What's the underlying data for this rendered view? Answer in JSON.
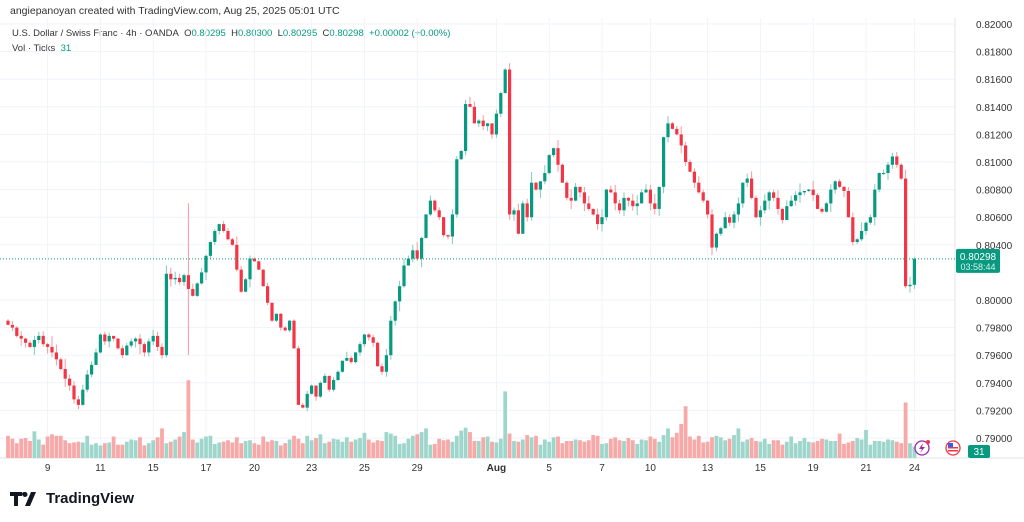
{
  "header": {
    "credit": "angiepanoyan created with TradingView.com, Aug 25, 2025 05:01 UTC",
    "symbol": "U.S. Dollar / Swiss Franc · 4h · OANDA",
    "o_label": "O",
    "o": "0.80295",
    "h_label": "H",
    "h": "0.80300",
    "l_label": "L",
    "l": "0.80295",
    "c_label": "C",
    "c": "0.80298",
    "change": "+0.00002 (+0.00%)",
    "vol_label": "Vol · Ticks",
    "vol_value": "31"
  },
  "logo": {
    "text": "TradingView"
  },
  "colors": {
    "up": "#089981",
    "down": "#f23645",
    "vol_up": "#9fd6cc",
    "vol_down": "#f7a9a7",
    "grid": "#f0f3fa"
  },
  "chart_data": {
    "type": "candlestick",
    "title": "U.S. Dollar / Swiss Franc · 4h · OANDA",
    "ylim": [
      0.789,
      0.82
    ],
    "y_ticks": [
      "0.82000",
      "0.81800",
      "0.81600",
      "0.81400",
      "0.81200",
      "0.81000",
      "0.80800",
      "0.80600",
      "0.80400",
      "0.80000",
      "0.79800",
      "0.79600",
      "0.79400",
      "0.79200",
      "0.79000"
    ],
    "x_ticks": [
      {
        "label": "9",
        "index": 9
      },
      {
        "label": "11",
        "index": 21
      },
      {
        "label": "15",
        "index": 33
      },
      {
        "label": "17",
        "index": 45
      },
      {
        "label": "20",
        "index": 56
      },
      {
        "label": "23",
        "index": 69
      },
      {
        "label": "25",
        "index": 81
      },
      {
        "label": "29",
        "index": 93
      },
      {
        "label": "Aug",
        "index": 111,
        "bold": true
      },
      {
        "label": "5",
        "index": 123
      },
      {
        "label": "7",
        "index": 135
      },
      {
        "label": "10",
        "index": 146
      },
      {
        "label": "13",
        "index": 159
      },
      {
        "label": "15",
        "index": 171
      },
      {
        "label": "19",
        "index": 183
      },
      {
        "label": "21",
        "index": 195
      },
      {
        "label": "24",
        "index": 206
      }
    ],
    "current_price": "0.80298",
    "countdown": "03:58:44",
    "current_volume": "31",
    "first_open": 0.7985,
    "closes": [
      0.7982,
      0.798,
      0.7974,
      0.7972,
      0.7969,
      0.7966,
      0.7971,
      0.7974,
      0.7968,
      0.7966,
      0.7962,
      0.7957,
      0.795,
      0.7943,
      0.7938,
      0.7928,
      0.7924,
      0.7935,
      0.7946,
      0.7953,
      0.7962,
      0.7975,
      0.797,
      0.7974,
      0.7972,
      0.7965,
      0.796,
      0.7967,
      0.797,
      0.7972,
      0.7968,
      0.7962,
      0.797,
      0.7974,
      0.7966,
      0.796,
      0.8019,
      0.8015,
      0.8016,
      0.8013,
      0.8018,
      0.8008,
      0.8003,
      0.8012,
      0.802,
      0.8032,
      0.8042,
      0.805,
      0.8055,
      0.805,
      0.8044,
      0.804,
      0.8022,
      0.8006,
      0.8015,
      0.803,
      0.8028,
      0.8022,
      0.801,
      0.7998,
      0.7985,
      0.799,
      0.798,
      0.7978,
      0.7985,
      0.7965,
      0.7924,
      0.7922,
      0.7932,
      0.7938,
      0.793,
      0.794,
      0.7945,
      0.7935,
      0.7942,
      0.7948,
      0.7956,
      0.7958,
      0.7955,
      0.7962,
      0.7968,
      0.7975,
      0.7973,
      0.7969,
      0.7952,
      0.7948,
      0.796,
      0.7985,
      0.7999,
      0.801,
      0.8025,
      0.803,
      0.8036,
      0.803,
      0.8045,
      0.8062,
      0.8072,
      0.8065,
      0.806,
      0.8047,
      0.8046,
      0.8062,
      0.8102,
      0.8108,
      0.8142,
      0.814,
      0.8128,
      0.813,
      0.8126,
      0.8128,
      0.812,
      0.8135,
      0.815,
      0.8167,
      0.8062,
      0.8065,
      0.8048,
      0.807,
      0.806,
      0.8085,
      0.808,
      0.8086,
      0.8092,
      0.8105,
      0.811,
      0.8098,
      0.8085,
      0.8074,
      0.8072,
      0.8082,
      0.8078,
      0.807,
      0.8066,
      0.8062,
      0.8055,
      0.806,
      0.808,
      0.8078,
      0.807,
      0.8065,
      0.8074,
      0.8072,
      0.8068,
      0.807,
      0.8078,
      0.808,
      0.807,
      0.8066,
      0.8082,
      0.8118,
      0.8128,
      0.8124,
      0.812,
      0.8112,
      0.81,
      0.8093,
      0.8085,
      0.8078,
      0.8072,
      0.8062,
      0.8038,
      0.8048,
      0.8052,
      0.806,
      0.8056,
      0.8062,
      0.807,
      0.8085,
      0.8088,
      0.8074,
      0.806,
      0.8065,
      0.8072,
      0.8078,
      0.8074,
      0.8066,
      0.8058,
      0.8068,
      0.8072,
      0.8076,
      0.8078,
      0.8079,
      0.808,
      0.8076,
      0.8066,
      0.8064,
      0.807,
      0.808,
      0.8086,
      0.8082,
      0.8079,
      0.806,
      0.8042,
      0.8044,
      0.805,
      0.8056,
      0.806,
      0.808,
      0.8092,
      0.8092,
      0.8098,
      0.8104,
      0.8098,
      0.8088,
      0.801,
      0.8011,
      0.80298
    ],
    "volumes": [
      60,
      52,
      40,
      52,
      54,
      46,
      72,
      50,
      36,
      58,
      64,
      60,
      60,
      48,
      40,
      42,
      44,
      42,
      60,
      36,
      40,
      34,
      40,
      42,
      58,
      36,
      36,
      44,
      50,
      48,
      56,
      34,
      40,
      48,
      56,
      80,
      40,
      44,
      50,
      58,
      70,
      210,
      50,
      42,
      52,
      58,
      60,
      38,
      42,
      44,
      48,
      42,
      56,
      40,
      46,
      48,
      40,
      36,
      58,
      44,
      48,
      46,
      34,
      40,
      50,
      60,
      52,
      40,
      60,
      48,
      54,
      64,
      40,
      44,
      52,
      50,
      44,
      56,
      44,
      50,
      54,
      68,
      50,
      42,
      48,
      46,
      70,
      66,
      60,
      38,
      40,
      52,
      60,
      64,
      70,
      80,
      36,
      38,
      52,
      48,
      50,
      44,
      60,
      74,
      82,
      70,
      46,
      46,
      56,
      58,
      44,
      42,
      52,
      180,
      66,
      46,
      44,
      50,
      62,
      56,
      60,
      36,
      50,
      44,
      56,
      58,
      40,
      46,
      46,
      50,
      48,
      44,
      48,
      62,
      60,
      38,
      40,
      52,
      56,
      48,
      46,
      54,
      48,
      38,
      50,
      48,
      58,
      52,
      44,
      62,
      80,
      56,
      68,
      92,
      140,
      58,
      50,
      60,
      42,
      44,
      56,
      60,
      56,
      48,
      52,
      62,
      80,
      44,
      50,
      54,
      46,
      44,
      52,
      38,
      48,
      48,
      36,
      44,
      58,
      40,
      46,
      54,
      44,
      42,
      46,
      52,
      50,
      46,
      46,
      66,
      38,
      42,
      46,
      54,
      50,
      76,
      36,
      46,
      46,
      44,
      50,
      48,
      44,
      40,
      150,
      40,
      31
    ]
  }
}
